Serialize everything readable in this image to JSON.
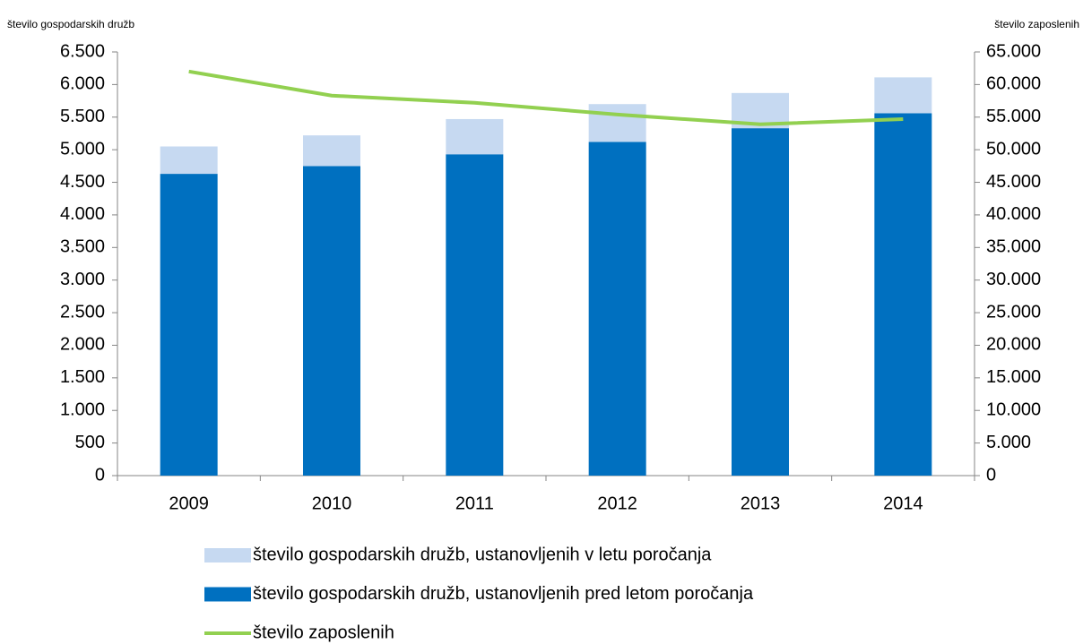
{
  "chart_data": {
    "type": "bar",
    "y_label": "število gospodarskih družb",
    "y2_label": "število zaposlenih",
    "categories": [
      "2009",
      "2010",
      "2011",
      "2012",
      "2013",
      "2014"
    ],
    "stacked": true,
    "series": [
      {
        "name": "število gospodarskih družb, ustanovljenih v letu poročanja",
        "type": "bar",
        "color": "#c6d9f1",
        "values": [
          420,
          470,
          540,
          580,
          540,
          550
        ]
      },
      {
        "name": "število gospodarskih družb, ustanovljenih pred letom poročanja",
        "type": "bar",
        "color": "#0070c0",
        "values": [
          4630,
          4750,
          4930,
          5120,
          5330,
          5560
        ]
      },
      {
        "name": "število zaposlenih",
        "type": "line",
        "axis": "y2",
        "color": "#92d050",
        "values": [
          62000,
          58300,
          57200,
          55400,
          53900,
          54700
        ]
      }
    ],
    "ylim": [
      0,
      6500
    ],
    "yticks": [
      0,
      500,
      {
        "value": 1000,
        "label": "1.000"
      },
      {
        "value": 1500,
        "label": "1.500"
      },
      {
        "value": 2000,
        "label": "2.000"
      },
      {
        "value": 2500,
        "label": "2.500"
      },
      {
        "value": 3000,
        "label": "3.000"
      },
      {
        "value": 3500,
        "label": "3.500"
      },
      {
        "value": 4000,
        "label": "4.000"
      },
      {
        "value": 4500,
        "label": "4.500"
      },
      {
        "value": 5000,
        "label": "5.000"
      },
      {
        "value": 5500,
        "label": "5.500"
      },
      {
        "value": 6000,
        "label": "6.000"
      },
      {
        "value": 6500,
        "label": "6.500"
      }
    ],
    "y2lim": [
      0,
      65000
    ],
    "y2ticks": [
      0,
      {
        "value": 5000,
        "label": "5.000"
      },
      {
        "value": 10000,
        "label": "10.000"
      },
      {
        "value": 15000,
        "label": "15.000"
      },
      {
        "value": 20000,
        "label": "20.000"
      },
      {
        "value": 25000,
        "label": "25.000"
      },
      {
        "value": 30000,
        "label": "30.000"
      },
      {
        "value": 35000,
        "label": "35.000"
      },
      {
        "value": 40000,
        "label": "40.000"
      },
      {
        "value": 45000,
        "label": "45.000"
      },
      {
        "value": 50000,
        "label": "50.000"
      },
      {
        "value": 55000,
        "label": "55.000"
      },
      {
        "value": 60000,
        "label": "60.000"
      },
      {
        "value": 65000,
        "label": "65.000"
      }
    ],
    "grid": false,
    "legend": "bottom"
  }
}
